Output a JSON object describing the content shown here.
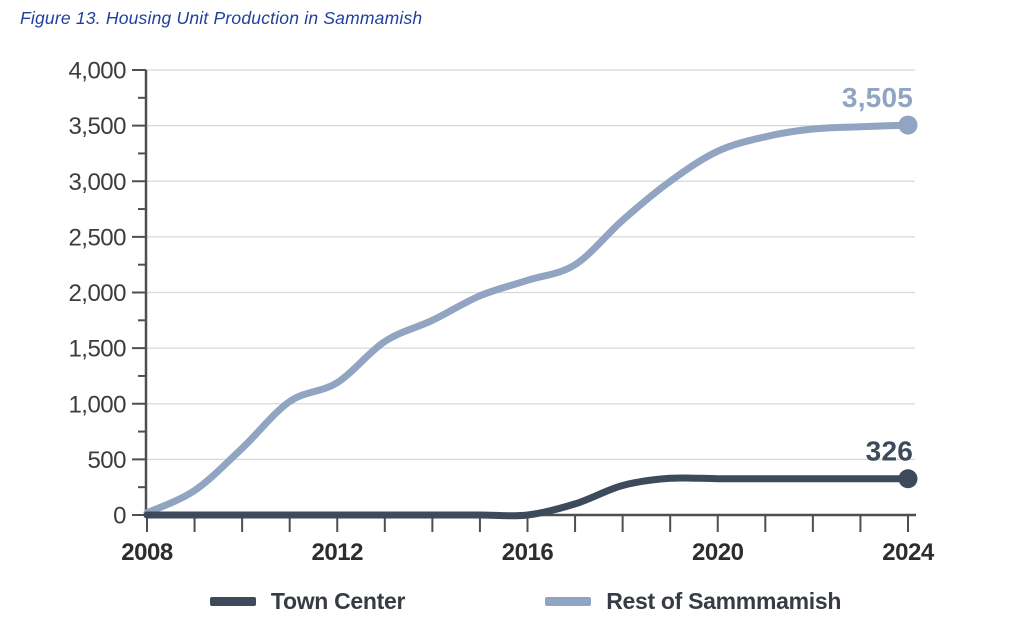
{
  "figure": {
    "caption": "Figure 13. Housing Unit Production in Sammamish"
  },
  "colors": {
    "title": "#1f409e",
    "grid": "#d8d8d8",
    "axis": "#4f4f4f",
    "y_tick_label": "#3c3c3c",
    "x_tick_label": "#2d2d2d",
    "legend_text": "#363b44"
  },
  "chart_data": {
    "type": "line",
    "title": "Figure 13. Housing Unit Production in Sammamish",
    "x": [
      2008,
      2009,
      2010,
      2011,
      2012,
      2013,
      2014,
      2015,
      2016,
      2017,
      2018,
      2019,
      2020,
      2021,
      2022,
      2023,
      2024
    ],
    "x_axis_labels": [
      "2008",
      "2012",
      "2016",
      "2020",
      "2024"
    ],
    "ylim": [
      0,
      4000
    ],
    "y_major_step": 500,
    "y_minor_step": 250,
    "y_tick_labels": [
      "0",
      "500",
      "1,000",
      "1,500",
      "2,000",
      "2,500",
      "3,000",
      "3,500",
      "4,000"
    ],
    "grid": "horizontal-major",
    "legend_position": "bottom-center",
    "line_style": "smooth",
    "end_markers": "dot",
    "series": [
      {
        "name": "Town Center",
        "color": "#3d4a5c",
        "end_label": "326",
        "values": [
          0,
          0,
          0,
          0,
          0,
          0,
          0,
          0,
          0,
          100,
          265,
          330,
          326,
          326,
          326,
          326,
          326
        ]
      },
      {
        "name": "Rest of Sammmamish",
        "color": "#91a4c1",
        "end_label": "3,505",
        "values": [
          20,
          220,
          600,
          1020,
          1190,
          1560,
          1750,
          1970,
          2110,
          2250,
          2650,
          3000,
          3270,
          3400,
          3470,
          3490,
          3505
        ]
      }
    ]
  }
}
